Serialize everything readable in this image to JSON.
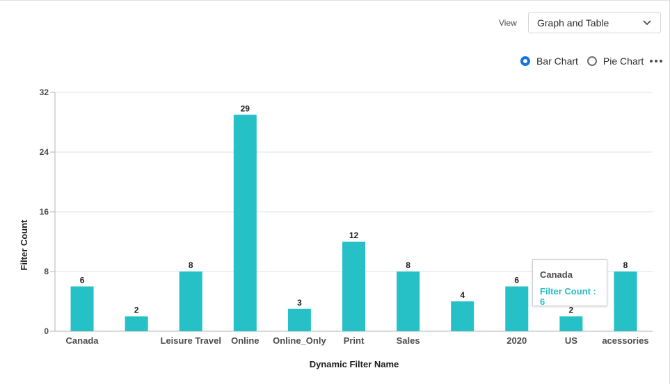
{
  "controls": {
    "view_label": "View",
    "view_value": "Graph and Table",
    "radio_bar": "Bar Chart",
    "radio_pie": "Pie Chart",
    "selected": "Bar Chart"
  },
  "tooltip": {
    "title": "Canada",
    "value": "Filter Count : 6"
  },
  "colors": {
    "bar": "#26c0c7",
    "accent": "#1473e6"
  },
  "chart_data": {
    "type": "bar",
    "categories": [
      "Canada",
      "",
      "Leisure Travel",
      "Online",
      "Online_Only",
      "Print",
      "Sales",
      "",
      "2020",
      "US",
      "acessories"
    ],
    "values": [
      6,
      2,
      8,
      29,
      3,
      12,
      8,
      4,
      6,
      2,
      8
    ],
    "xlabel": "Dynamic Filter Name",
    "ylabel": "Filter Count",
    "ylim": [
      0,
      32
    ],
    "yticks": [
      0,
      8,
      16,
      24,
      32
    ],
    "grid": true,
    "data_labels": true
  }
}
